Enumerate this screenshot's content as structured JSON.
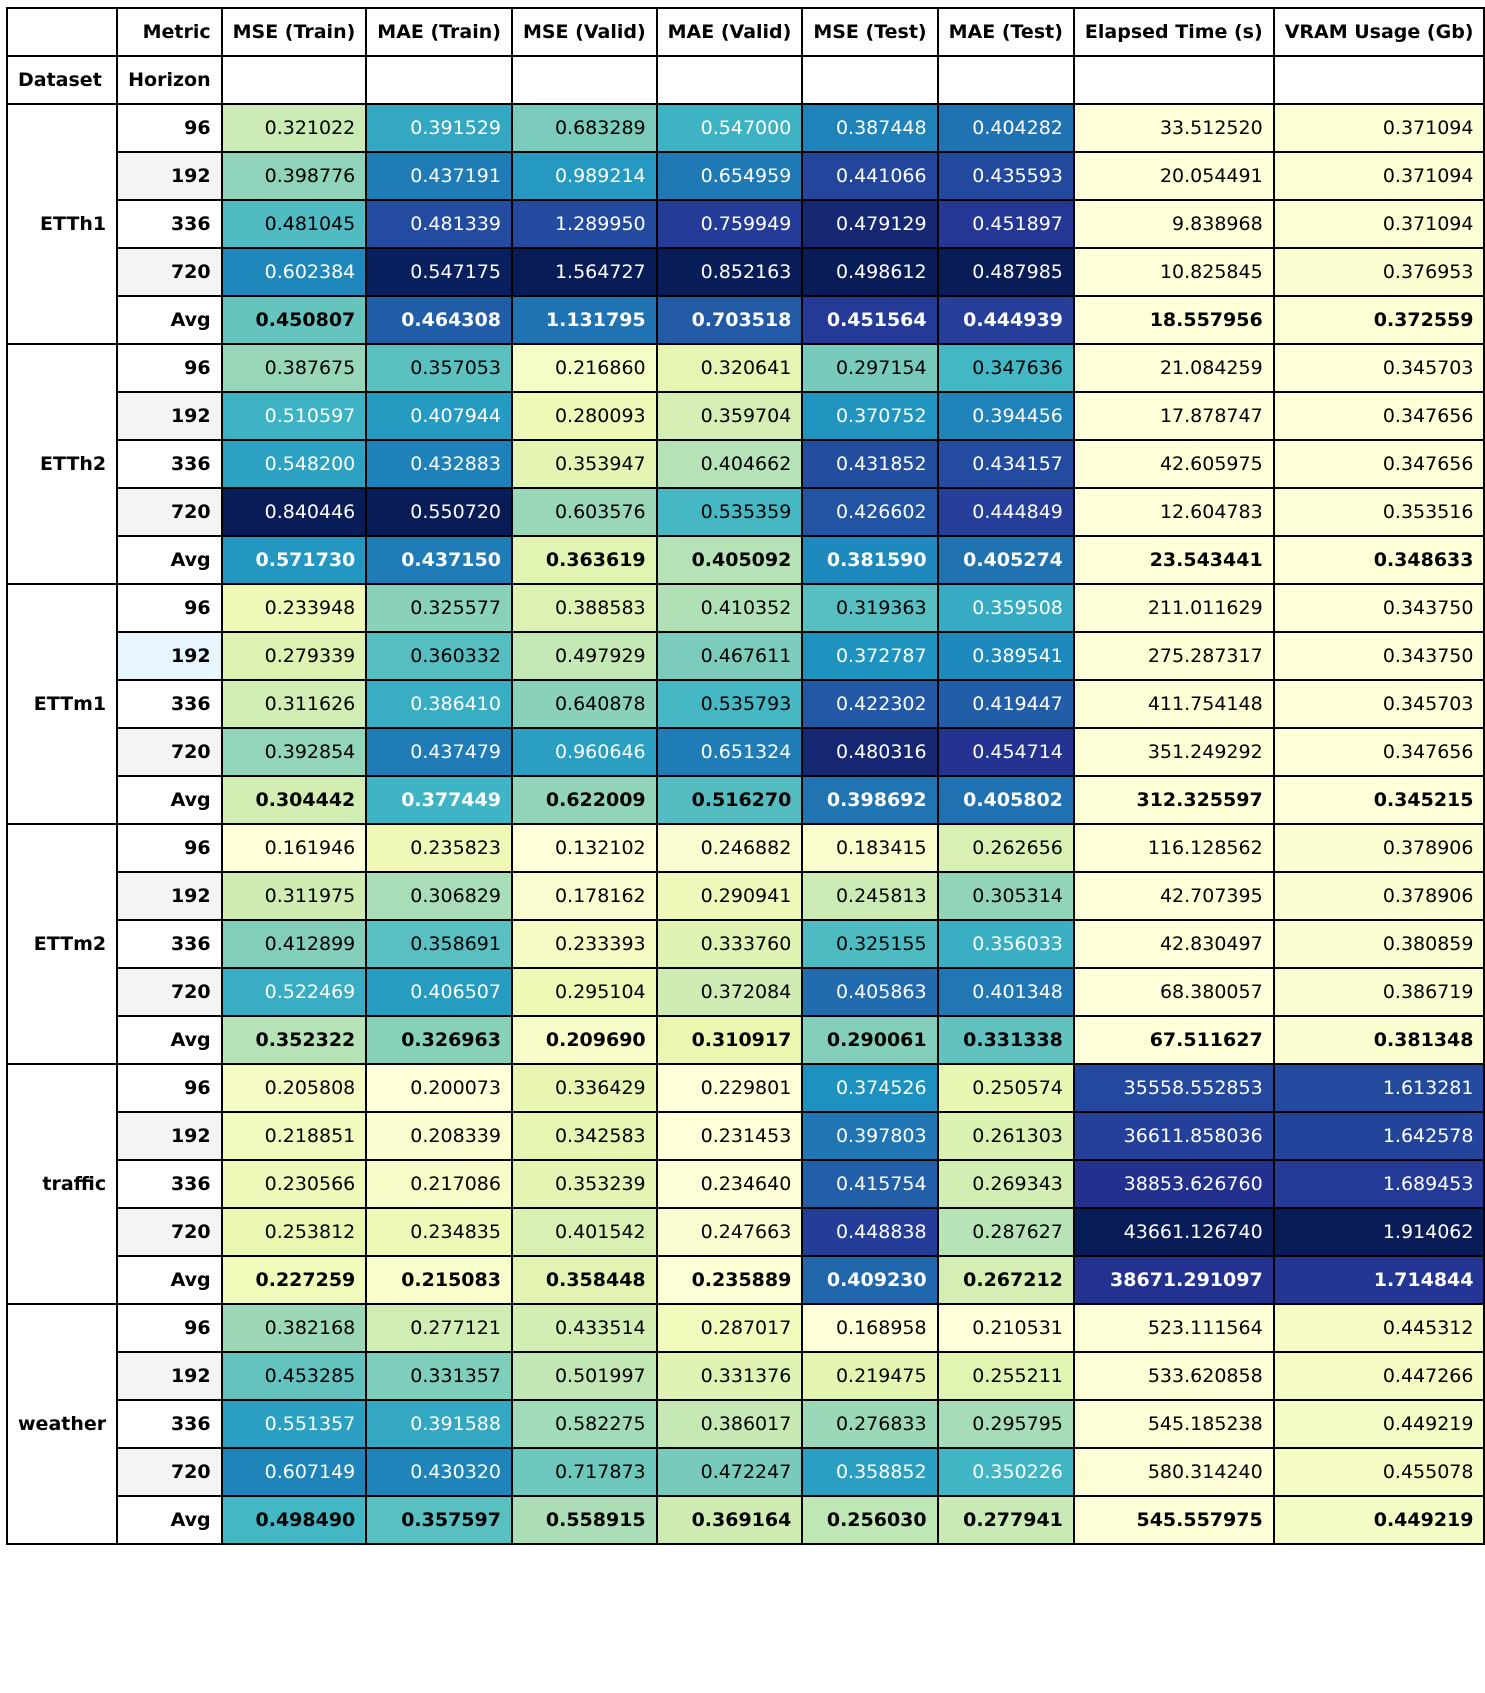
{
  "table": {
    "metric_label": "Metric",
    "dataset_label": "Dataset",
    "horizon_label": "Horizon",
    "columns": [
      "MSE (Train)",
      "MAE (Train)",
      "MSE (Valid)",
      "MAE (Valid)",
      "MSE (Test)",
      "MAE (Test)",
      "Elapsed Time (s)",
      "VRAM Usage (Gb)"
    ],
    "colormap": [
      "#ffffd9",
      "#edf8b1",
      "#c7e9b4",
      "#7fcdbb",
      "#41b6c4",
      "#1d91c0",
      "#225ea8",
      "#253494",
      "#081d58"
    ],
    "selected_row": "ETTm1-192",
    "groups": [
      {
        "dataset": "ETTh1",
        "rows": [
          {
            "horizon": "96",
            "values": [
              "0.321022",
              "0.391529",
              "0.683289",
              "0.547000",
              "0.387448",
              "0.404282",
              "33.512520",
              "0.371094"
            ]
          },
          {
            "horizon": "192",
            "values": [
              "0.398776",
              "0.437191",
              "0.989214",
              "0.654959",
              "0.441066",
              "0.435593",
              "20.054491",
              "0.371094"
            ]
          },
          {
            "horizon": "336",
            "values": [
              "0.481045",
              "0.481339",
              "1.289950",
              "0.759949",
              "0.479129",
              "0.451897",
              "9.838968",
              "0.371094"
            ]
          },
          {
            "horizon": "720",
            "values": [
              "0.602384",
              "0.547175",
              "1.564727",
              "0.852163",
              "0.498612",
              "0.487985",
              "10.825845",
              "0.376953"
            ]
          },
          {
            "horizon": "Avg",
            "values": [
              "0.450807",
              "0.464308",
              "1.131795",
              "0.703518",
              "0.451564",
              "0.444939",
              "18.557956",
              "0.372559"
            ]
          }
        ]
      },
      {
        "dataset": "ETTh2",
        "rows": [
          {
            "horizon": "96",
            "values": [
              "0.387675",
              "0.357053",
              "0.216860",
              "0.320641",
              "0.297154",
              "0.347636",
              "21.084259",
              "0.345703"
            ]
          },
          {
            "horizon": "192",
            "values": [
              "0.510597",
              "0.407944",
              "0.280093",
              "0.359704",
              "0.370752",
              "0.394456",
              "17.878747",
              "0.347656"
            ]
          },
          {
            "horizon": "336",
            "values": [
              "0.548200",
              "0.432883",
              "0.353947",
              "0.404662",
              "0.431852",
              "0.434157",
              "42.605975",
              "0.347656"
            ]
          },
          {
            "horizon": "720",
            "values": [
              "0.840446",
              "0.550720",
              "0.603576",
              "0.535359",
              "0.426602",
              "0.444849",
              "12.604783",
              "0.353516"
            ]
          },
          {
            "horizon": "Avg",
            "values": [
              "0.571730",
              "0.437150",
              "0.363619",
              "0.405092",
              "0.381590",
              "0.405274",
              "23.543441",
              "0.348633"
            ]
          }
        ]
      },
      {
        "dataset": "ETTm1",
        "rows": [
          {
            "horizon": "96",
            "values": [
              "0.233948",
              "0.325577",
              "0.388583",
              "0.410352",
              "0.319363",
              "0.359508",
              "211.011629",
              "0.343750"
            ]
          },
          {
            "horizon": "192",
            "values": [
              "0.279339",
              "0.360332",
              "0.497929",
              "0.467611",
              "0.372787",
              "0.389541",
              "275.287317",
              "0.343750"
            ]
          },
          {
            "horizon": "336",
            "values": [
              "0.311626",
              "0.386410",
              "0.640878",
              "0.535793",
              "0.422302",
              "0.419447",
              "411.754148",
              "0.345703"
            ]
          },
          {
            "horizon": "720",
            "values": [
              "0.392854",
              "0.437479",
              "0.960646",
              "0.651324",
              "0.480316",
              "0.454714",
              "351.249292",
              "0.347656"
            ]
          },
          {
            "horizon": "Avg",
            "values": [
              "0.304442",
              "0.377449",
              "0.622009",
              "0.516270",
              "0.398692",
              "0.405802",
              "312.325597",
              "0.345215"
            ]
          }
        ]
      },
      {
        "dataset": "ETTm2",
        "rows": [
          {
            "horizon": "96",
            "values": [
              "0.161946",
              "0.235823",
              "0.132102",
              "0.246882",
              "0.183415",
              "0.262656",
              "116.128562",
              "0.378906"
            ]
          },
          {
            "horizon": "192",
            "values": [
              "0.311975",
              "0.306829",
              "0.178162",
              "0.290941",
              "0.245813",
              "0.305314",
              "42.707395",
              "0.378906"
            ]
          },
          {
            "horizon": "336",
            "values": [
              "0.412899",
              "0.358691",
              "0.233393",
              "0.333760",
              "0.325155",
              "0.356033",
              "42.830497",
              "0.380859"
            ]
          },
          {
            "horizon": "720",
            "values": [
              "0.522469",
              "0.406507",
              "0.295104",
              "0.372084",
              "0.405863",
              "0.401348",
              "68.380057",
              "0.386719"
            ]
          },
          {
            "horizon": "Avg",
            "values": [
              "0.352322",
              "0.326963",
              "0.209690",
              "0.310917",
              "0.290061",
              "0.331338",
              "67.511627",
              "0.381348"
            ]
          }
        ]
      },
      {
        "dataset": "traffic",
        "rows": [
          {
            "horizon": "96",
            "values": [
              "0.205808",
              "0.200073",
              "0.336429",
              "0.229801",
              "0.374526",
              "0.250574",
              "35558.552853",
              "1.613281"
            ]
          },
          {
            "horizon": "192",
            "values": [
              "0.218851",
              "0.208339",
              "0.342583",
              "0.231453",
              "0.397803",
              "0.261303",
              "36611.858036",
              "1.642578"
            ]
          },
          {
            "horizon": "336",
            "values": [
              "0.230566",
              "0.217086",
              "0.353239",
              "0.234640",
              "0.415754",
              "0.269343",
              "38853.626760",
              "1.689453"
            ]
          },
          {
            "horizon": "720",
            "values": [
              "0.253812",
              "0.234835",
              "0.401542",
              "0.247663",
              "0.448838",
              "0.287627",
              "43661.126740",
              "1.914062"
            ]
          },
          {
            "horizon": "Avg",
            "values": [
              "0.227259",
              "0.215083",
              "0.358448",
              "0.235889",
              "0.409230",
              "0.267212",
              "38671.291097",
              "1.714844"
            ]
          }
        ]
      },
      {
        "dataset": "weather",
        "rows": [
          {
            "horizon": "96",
            "values": [
              "0.382168",
              "0.277121",
              "0.433514",
              "0.287017",
              "0.168958",
              "0.210531",
              "523.111564",
              "0.445312"
            ]
          },
          {
            "horizon": "192",
            "values": [
              "0.453285",
              "0.331357",
              "0.501997",
              "0.331376",
              "0.219475",
              "0.255211",
              "533.620858",
              "0.447266"
            ]
          },
          {
            "horizon": "336",
            "values": [
              "0.551357",
              "0.391588",
              "0.582275",
              "0.386017",
              "0.276833",
              "0.295795",
              "545.185238",
              "0.449219"
            ]
          },
          {
            "horizon": "720",
            "values": [
              "0.607149",
              "0.430320",
              "0.717873",
              "0.472247",
              "0.358852",
              "0.350226",
              "580.314240",
              "0.455078"
            ]
          },
          {
            "horizon": "Avg",
            "values": [
              "0.498490",
              "0.357597",
              "0.558915",
              "0.369164",
              "0.256030",
              "0.277941",
              "545.557975",
              "0.449219"
            ]
          }
        ]
      }
    ]
  },
  "chart_data": {
    "type": "heatmap",
    "title": "",
    "xlabel": "Metric",
    "ylabel": "Dataset / Horizon",
    "color_scale": "per-column, light yellow (low) to dark blue (high)",
    "columns": [
      "MSE (Train)",
      "MAE (Train)",
      "MSE (Valid)",
      "MAE (Valid)",
      "MSE (Test)",
      "MAE (Test)",
      "Elapsed Time (s)",
      "VRAM Usage (Gb)"
    ],
    "rows": [
      "ETTh1 96",
      "ETTh1 192",
      "ETTh1 336",
      "ETTh1 720",
      "ETTh1 Avg",
      "ETTh2 96",
      "ETTh2 192",
      "ETTh2 336",
      "ETTh2 720",
      "ETTh2 Avg",
      "ETTm1 96",
      "ETTm1 192",
      "ETTm1 336",
      "ETTm1 720",
      "ETTm1 Avg",
      "ETTm2 96",
      "ETTm2 192",
      "ETTm2 336",
      "ETTm2 720",
      "ETTm2 Avg",
      "traffic 96",
      "traffic 192",
      "traffic 336",
      "traffic 720",
      "traffic Avg",
      "weather 96",
      "weather 192",
      "weather 336",
      "weather 720",
      "weather Avg"
    ]
  }
}
